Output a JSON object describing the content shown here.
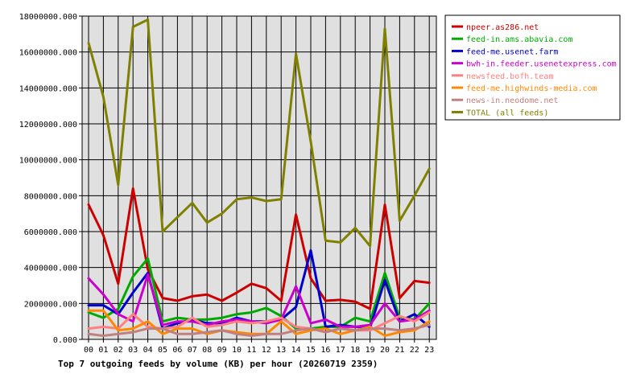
{
  "chart_data": {
    "type": "line",
    "title": "Top 7 outgoing feeds by volume (KB) per hour (20260719 2359)",
    "xlabel": "",
    "ylabel": "",
    "categories": [
      "00",
      "01",
      "02",
      "03",
      "04",
      "05",
      "06",
      "07",
      "08",
      "09",
      "10",
      "11",
      "12",
      "13",
      "14",
      "15",
      "16",
      "17",
      "18",
      "19",
      "20",
      "21",
      "22",
      "23"
    ],
    "ylim": [
      0,
      18000000
    ],
    "y_ticks": [
      0,
      2000000,
      4000000,
      6000000,
      8000000,
      10000000,
      12000000,
      14000000,
      16000000,
      18000000
    ],
    "y_tick_labels": [
      "0.000",
      "2000000.000",
      "4000000.000",
      "6000000.000",
      "8000000.000",
      "10000000.000",
      "12000000.000",
      "14000000.000",
      "16000000.000",
      "18000000.000"
    ],
    "grid": true,
    "legend_position": "right",
    "series": [
      {
        "name": "npeer.as286.net",
        "color": "#cc0000",
        "values": [
          7500000,
          5800000,
          3100000,
          8400000,
          3900000,
          2300000,
          2150000,
          2400000,
          2500000,
          2150000,
          2600000,
          3100000,
          2850000,
          2150000,
          6950000,
          3400000,
          2150000,
          2200000,
          2100000,
          1700000,
          7500000,
          2300000,
          3250000,
          3150000
        ]
      },
      {
        "name": "feed-in.ams.abavia.com",
        "color": "#00aa00",
        "values": [
          1500000,
          1200000,
          1700000,
          3500000,
          4500000,
          1000000,
          1200000,
          1100000,
          1100000,
          1200000,
          1400000,
          1500000,
          1750000,
          1300000,
          600000,
          600000,
          700000,
          700000,
          1200000,
          1000000,
          3700000,
          1200000,
          1100000,
          2000000
        ]
      },
      {
        "name": "feed-me.usenet.farm",
        "color": "#0000cc",
        "values": [
          1900000,
          1900000,
          1400000,
          2600000,
          3700000,
          600000,
          900000,
          1100000,
          900000,
          900000,
          1200000,
          1000000,
          1000000,
          1100000,
          1800000,
          4950000,
          700000,
          800000,
          700000,
          650000,
          3300000,
          1000000,
          1400000,
          700000
        ]
      },
      {
        "name": "bwh-in.feeder.usenetexpress.com",
        "color": "#cc00cc",
        "values": [
          3400000,
          2500000,
          1400000,
          1000000,
          3600000,
          800000,
          1000000,
          1000000,
          800000,
          1000000,
          1100000,
          1000000,
          900000,
          1100000,
          2950000,
          900000,
          1100000,
          700000,
          700000,
          800000,
          2000000,
          1000000,
          1100000,
          1600000
        ]
      },
      {
        "name": "newsfeed.bofh.team",
        "color": "#ff8080",
        "values": [
          600000,
          700000,
          600000,
          1400000,
          700000,
          600000,
          700000,
          1200000,
          700000,
          800000,
          1000000,
          900000,
          1000000,
          1200000,
          700000,
          600000,
          400000,
          600000,
          500000,
          500000,
          900000,
          1300000,
          1000000,
          1500000
        ]
      },
      {
        "name": "feed-me.highwinds-media.com",
        "color": "#ff8800",
        "values": [
          1600000,
          1600000,
          500000,
          600000,
          1000000,
          300000,
          600000,
          600000,
          300000,
          500000,
          400000,
          300000,
          300000,
          1000000,
          300000,
          500000,
          600000,
          300000,
          500000,
          700000,
          200000,
          400000,
          500000,
          1000000
        ]
      },
      {
        "name": "news-in.neodome.net",
        "color": "#c08080",
        "values": [
          300000,
          200000,
          300000,
          400000,
          600000,
          600000,
          300000,
          300000,
          400000,
          500000,
          300000,
          200000,
          300000,
          300000,
          500000,
          600000,
          400000,
          600000,
          500000,
          600000,
          600000,
          500000,
          600000,
          800000
        ]
      },
      {
        "name": "TOTAL (all feeds)",
        "color": "#808000",
        "values": [
          16500000,
          13500000,
          8600000,
          17400000,
          17800000,
          6000000,
          6800000,
          7600000,
          6500000,
          7000000,
          7800000,
          7900000,
          7700000,
          7800000,
          15900000,
          11000000,
          5500000,
          5400000,
          6200000,
          5200000,
          17300000,
          6600000,
          8000000,
          9500000
        ]
      }
    ]
  }
}
